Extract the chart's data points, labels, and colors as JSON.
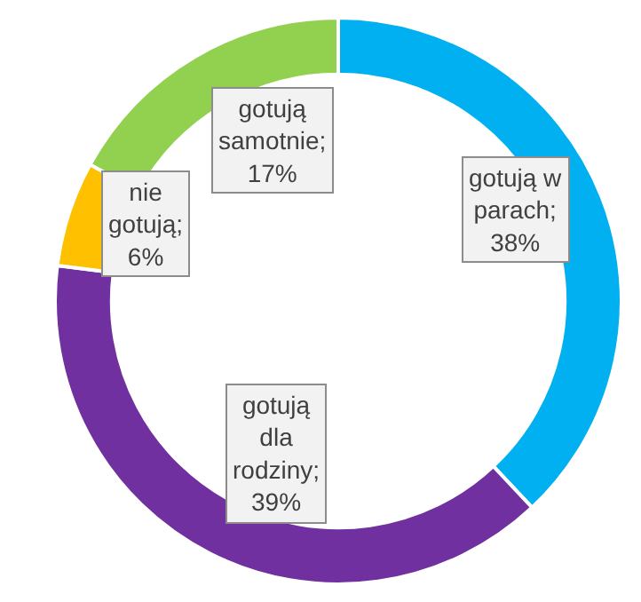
{
  "chart_data": {
    "type": "donut",
    "categories": [
      "gotują w parach; 38%",
      "gotują dla rodziny; 39%",
      "nie gotują; 6%",
      "gotują samotnie; 17%"
    ],
    "values": [
      38,
      39,
      6,
      17
    ],
    "colors": [
      "#00b0f0",
      "#7030a0",
      "#ffc000",
      "#92d050"
    ],
    "legend": false
  }
}
